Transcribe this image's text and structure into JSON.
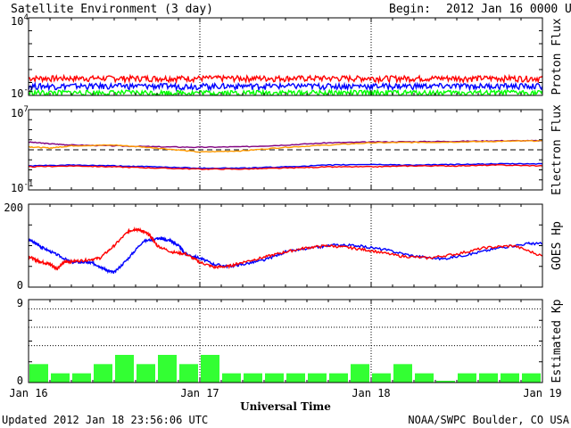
{
  "header": {
    "title": "Satellite Environment (3 day)",
    "begin_label": "Begin:",
    "begin_value": "2012 Jan 16 0000 UTC"
  },
  "footer": {
    "updated": "Updated 2012 Jan 18 23:56:06 UTC",
    "credit": "NOAA/SWPC Boulder, CO USA"
  },
  "chart_data": [
    {
      "type": "line",
      "name": "proton-flux",
      "ylabel": "Proton Flux",
      "yscale": "log",
      "ylim": [
        0.01,
        10000
      ],
      "yticks": [
        {
          "base": "10",
          "exp": "4"
        },
        {
          "base": "10",
          "exp": "-2"
        }
      ],
      "threshold": 10,
      "xlim": [
        0,
        72
      ],
      "series": [
        {
          "color": "#ff0000",
          "level": 0.2
        },
        {
          "color": "#0000ff",
          "level": 0.05
        },
        {
          "color": "#00ff00",
          "level": 0.015
        }
      ]
    },
    {
      "type": "line",
      "name": "electron-flux",
      "ylabel": "Electron Flux",
      "yscale": "log",
      "ylim": [
        0.1,
        10000000
      ],
      "yticks": [
        {
          "base": "10",
          "exp": "7"
        },
        {
          "base": "10",
          "exp": "-1"
        }
      ],
      "threshold": 1000,
      "xlim": [
        0,
        72
      ],
      "series": [
        {
          "color": "#800080",
          "x": [
            0,
            3,
            6,
            12,
            18,
            24,
            30,
            36,
            42,
            48,
            54,
            60,
            66,
            72
          ],
          "y": [
            6000,
            4000,
            3000,
            2500,
            2000,
            1800,
            2000,
            3000,
            5000,
            6000,
            6500,
            7000,
            8000,
            8000
          ]
        },
        {
          "color": "#ff9900",
          "x": [
            0,
            3,
            6,
            12,
            18,
            24,
            30,
            36,
            42,
            48,
            54,
            60,
            66,
            72
          ],
          "y": [
            2000,
            1500,
            2500,
            3000,
            1500,
            600,
            800,
            1800,
            3000,
            5000,
            5500,
            6000,
            7000,
            8000
          ]
        },
        {
          "color": "#0000ff",
          "x": [
            0,
            6,
            12,
            18,
            24,
            30,
            36,
            42,
            48,
            54,
            60,
            66,
            72
          ],
          "y": [
            25,
            30,
            25,
            20,
            15,
            15,
            20,
            30,
            35,
            30,
            35,
            40,
            40
          ]
        },
        {
          "color": "#ff0000",
          "x": [
            0,
            6,
            12,
            18,
            24,
            30,
            36,
            42,
            48,
            54,
            60,
            66,
            72
          ],
          "y": [
            20,
            25,
            20,
            15,
            12,
            12,
            15,
            20,
            20,
            25,
            25,
            30,
            25
          ]
        }
      ]
    },
    {
      "type": "line",
      "name": "goes-hp",
      "ylabel": "GOES Hp",
      "ylim": [
        0,
        200
      ],
      "yticks": [
        "200",
        "0"
      ],
      "xlim": [
        0,
        72
      ],
      "series": [
        {
          "color": "#0000ff",
          "x": [
            0,
            1,
            2,
            4,
            6,
            8,
            9,
            10,
            11,
            12,
            14,
            16,
            18,
            19,
            20,
            21,
            22,
            24,
            26,
            28,
            30,
            33,
            36,
            40,
            43,
            46,
            50,
            54,
            58,
            62,
            66,
            70,
            72
          ],
          "y": [
            115,
            105,
            95,
            78,
            60,
            60,
            58,
            50,
            40,
            35,
            70,
            110,
            118,
            115,
            112,
            100,
            80,
            70,
            55,
            50,
            55,
            65,
            85,
            95,
            102,
            100,
            90,
            75,
            68,
            80,
            95,
            105,
            105
          ]
        },
        {
          "color": "#ff0000",
          "x": [
            0,
            1,
            2,
            3,
            4,
            5,
            6,
            8,
            10,
            12,
            14,
            15,
            16,
            17,
            18,
            20,
            22,
            24,
            26,
            28,
            30,
            33,
            36,
            39,
            42,
            45,
            48,
            52,
            56,
            60,
            64,
            68,
            72
          ],
          "y": [
            75,
            65,
            60,
            55,
            45,
            60,
            62,
            65,
            70,
            100,
            135,
            140,
            135,
            125,
            100,
            85,
            80,
            60,
            48,
            50,
            60,
            72,
            85,
            95,
            100,
            95,
            88,
            75,
            70,
            80,
            95,
            100,
            75
          ]
        }
      ]
    },
    {
      "type": "bar",
      "name": "estimated-kp",
      "ylabel": "Estimated Kp",
      "ylim": [
        0,
        9
      ],
      "yticks": [
        "9",
        "0"
      ],
      "gridlines": [
        4,
        6,
        8
      ],
      "xlim": [
        0,
        72
      ],
      "bar_width_hours": 3,
      "values": [
        2,
        1,
        1,
        2,
        3,
        2,
        3,
        2,
        3,
        1,
        1,
        1,
        1,
        1,
        1,
        2,
        1,
        2,
        1,
        0,
        1,
        1,
        1,
        1
      ],
      "color": "#33ff33"
    }
  ],
  "x_axis": {
    "label": "Universal Time",
    "ticks": [
      {
        "hour": 0,
        "label": "Jan 16"
      },
      {
        "hour": 24,
        "label": "Jan 17"
      },
      {
        "hour": 48,
        "label": "Jan 18"
      },
      {
        "hour": 72,
        "label": "Jan 19"
      }
    ]
  }
}
